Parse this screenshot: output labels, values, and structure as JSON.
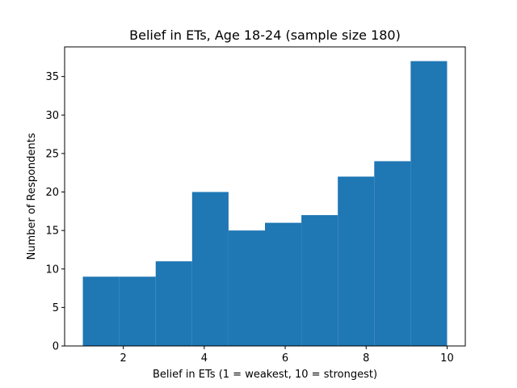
{
  "chart_data": {
    "type": "bar",
    "title": "Belief in ETs, Age 18-24 (sample size 180)",
    "xlabel": "Belief in ETs (1 = weakest, 10 = strongest)",
    "ylabel": "Number of Respondents",
    "bin_edges": [
      1.0,
      1.9,
      2.8,
      3.7,
      4.6,
      5.5,
      6.4,
      7.3,
      8.2,
      9.1,
      10.0
    ],
    "values": [
      9,
      9,
      11,
      20,
      15,
      16,
      17,
      22,
      24,
      37
    ],
    "xlim": [
      0.55,
      10.45
    ],
    "ylim": [
      0,
      38.85
    ],
    "xticks": [
      2,
      4,
      6,
      8,
      10
    ],
    "yticks": [
      0,
      5,
      10,
      15,
      20,
      25,
      30,
      35
    ],
    "grid": false,
    "bar_color": "#1f77b4"
  }
}
